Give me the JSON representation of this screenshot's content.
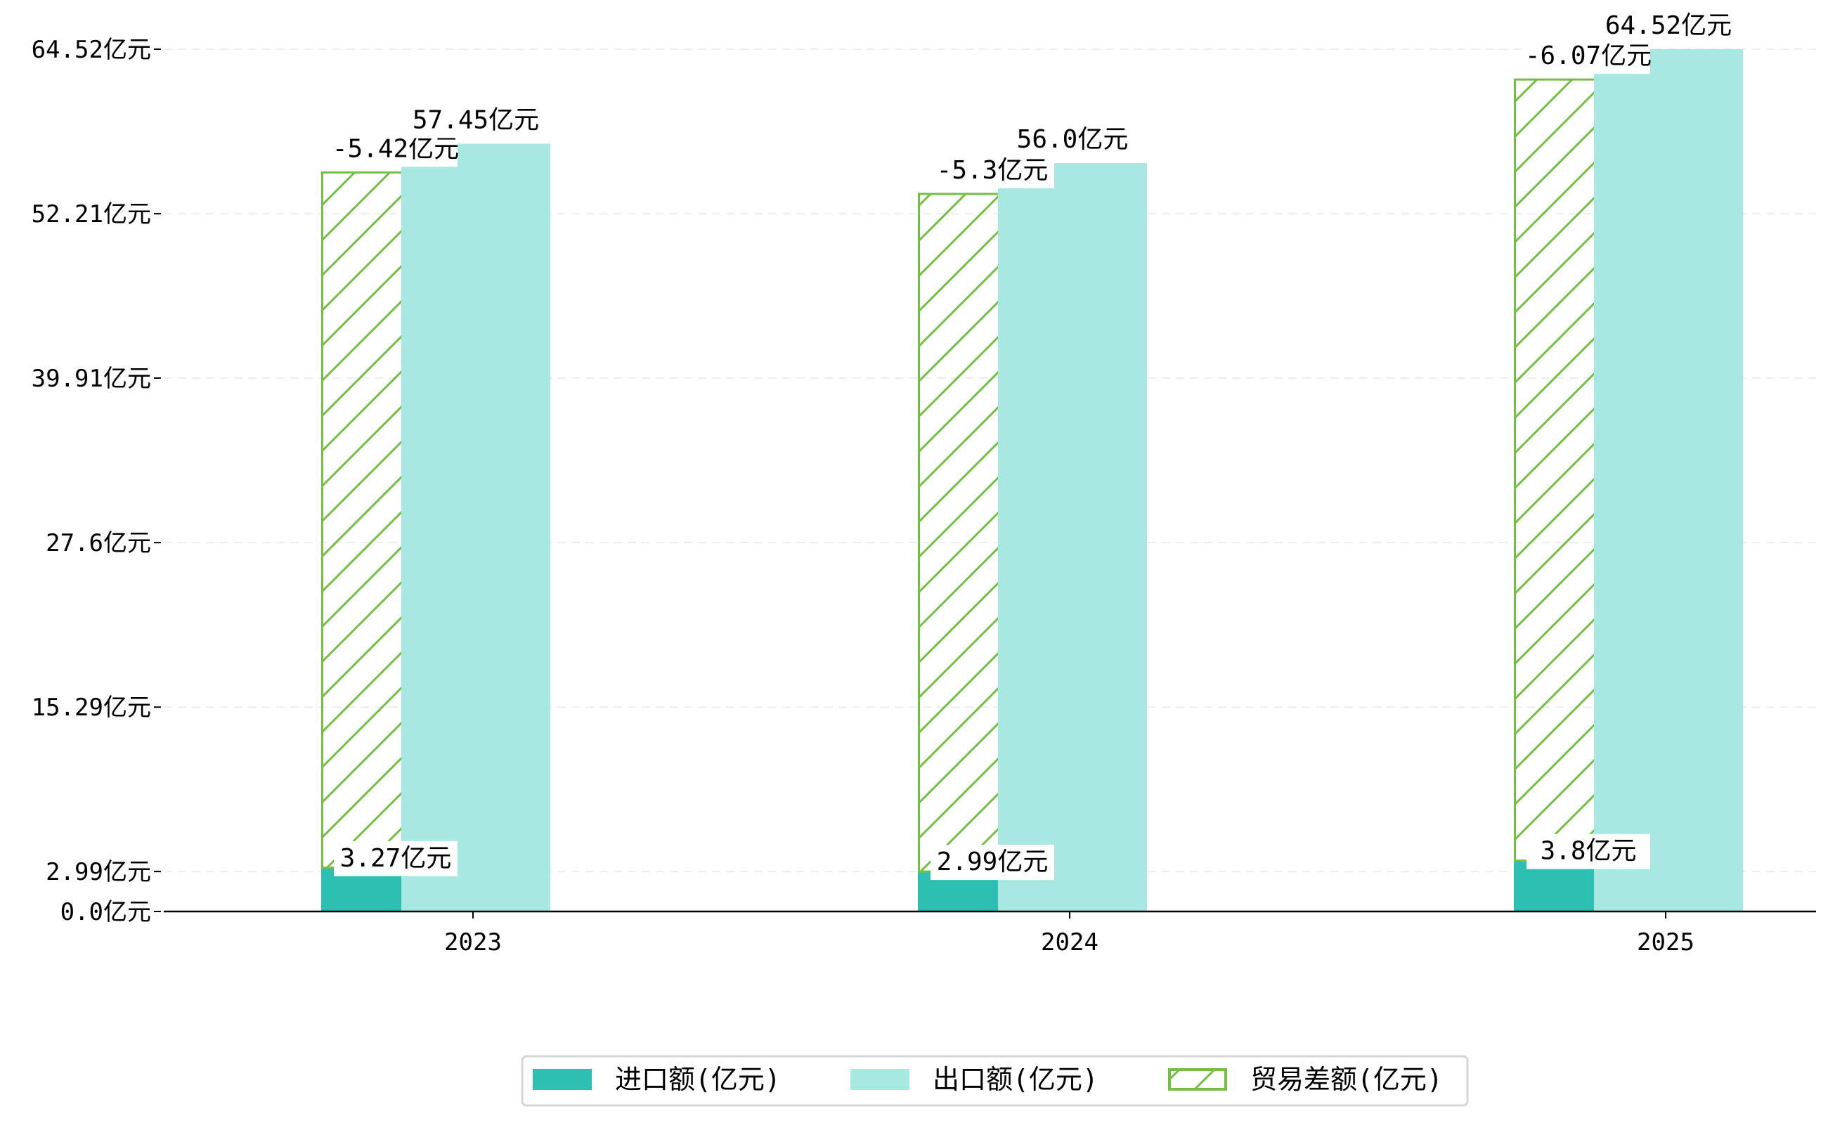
{
  "chart_data": {
    "type": "bar",
    "title": "",
    "xlabel": "",
    "ylabel": "",
    "categories": [
      "2023",
      "2024",
      "2025"
    ],
    "series": [
      {
        "name": "进口额(亿元)",
        "values": [
          3.27,
          2.99,
          3.8
        ],
        "labels": [
          "3.27亿元",
          "2.99亿元",
          "3.8亿元"
        ],
        "color": "#2EBFB3"
      },
      {
        "name": "出口额(亿元)",
        "values": [
          57.45,
          56.0,
          64.52
        ],
        "labels": [
          "57.45亿元",
          "56.0亿元",
          "64.52亿元"
        ],
        "color": "#A8E8E2"
      },
      {
        "name": "贸易差额(亿元)",
        "values": [
          -5.42,
          -5.3,
          -6.07
        ],
        "labels": [
          "-5.42亿元",
          "-5.3亿元",
          "-6.07亿元"
        ],
        "color": "#74BE45",
        "pattern": "hatch"
      }
    ],
    "yticks": [
      0.0,
      2.99,
      15.29,
      27.6,
      39.91,
      52.21,
      64.52
    ],
    "ytick_labels": [
      "0.0亿元",
      "2.99亿元",
      "15.29亿元",
      "27.6亿元",
      "39.91亿元",
      "52.21亿元",
      "64.52亿元"
    ],
    "ylim": [
      0,
      64.52
    ],
    "grid": "horizontal-dashed",
    "legend": "bottom-center"
  }
}
